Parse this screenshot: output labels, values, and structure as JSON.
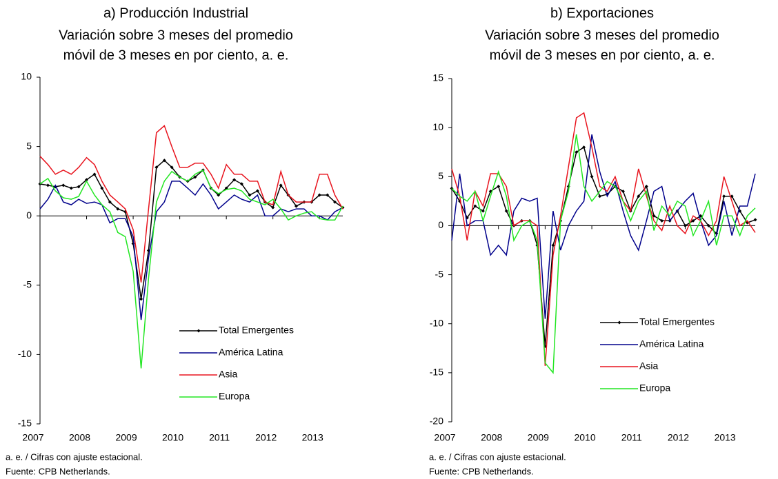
{
  "chart_data": [
    {
      "type": "line",
      "title": "a) Producción Industrial",
      "subtitle": [
        "Variación sobre 3 meses del promedio",
        "móvil de 3 meses en por ciento, a. e."
      ],
      "x": [
        2007,
        2007.17,
        2007.33,
        2007.5,
        2007.67,
        2007.83,
        2008,
        2008.17,
        2008.33,
        2008.5,
        2008.67,
        2008.83,
        2009,
        2009.17,
        2009.33,
        2009.5,
        2009.67,
        2009.83,
        2010,
        2010.17,
        2010.33,
        2010.5,
        2010.67,
        2010.83,
        2011,
        2011.17,
        2011.33,
        2011.5,
        2011.67,
        2011.83,
        2012,
        2012.17,
        2012.33,
        2012.5,
        2012.67,
        2012.83,
        2013,
        2013.17,
        2013.33,
        2013.5
      ],
      "series": [
        {
          "name": "Total Emergentes",
          "color": "#000000",
          "marker": true,
          "values": [
            2.3,
            2.2,
            2.1,
            2.2,
            2.0,
            2.1,
            2.6,
            3.0,
            2.0,
            1.0,
            0.5,
            0.3,
            -2.0,
            -6.0,
            -2.5,
            3.5,
            4.0,
            3.5,
            2.8,
            2.5,
            2.8,
            3.3,
            2.0,
            1.5,
            2.0,
            2.6,
            2.3,
            1.5,
            1.8,
            1.0,
            0.6,
            2.2,
            1.5,
            0.7,
            1.0,
            1.0,
            1.5,
            1.5,
            1.0,
            0.6
          ]
        },
        {
          "name": "América Latina",
          "color": "#00008b",
          "marker": false,
          "values": [
            0.5,
            1.2,
            2.2,
            1.0,
            0.8,
            1.2,
            0.9,
            1.0,
            0.8,
            -0.5,
            -0.2,
            -0.2,
            -1.5,
            -7.5,
            -3.0,
            0.3,
            1.0,
            2.5,
            2.5,
            2.0,
            1.5,
            2.3,
            1.5,
            0.5,
            1.0,
            1.5,
            1.2,
            1.0,
            1.5,
            0.0,
            0.0,
            0.5,
            0.3,
            0.5,
            0.5,
            0.0,
            0.0,
            -0.3,
            0.3,
            0.6
          ]
        },
        {
          "name": "Asia",
          "color": "#e8141e",
          "marker": false,
          "values": [
            4.3,
            3.7,
            3.0,
            3.3,
            3.0,
            3.5,
            4.2,
            3.7,
            2.5,
            1.5,
            1.0,
            0.5,
            -1.0,
            -4.8,
            0.5,
            6.0,
            6.5,
            5.0,
            3.5,
            3.5,
            3.8,
            3.8,
            3.0,
            2.0,
            3.7,
            3.0,
            3.0,
            2.5,
            2.5,
            1.0,
            0.8,
            3.2,
            1.5,
            1.0,
            1.0,
            1.0,
            3.0,
            3.0,
            1.5,
            0.5
          ]
        },
        {
          "name": "Europa",
          "color": "#22e622",
          "marker": false,
          "values": [
            2.3,
            2.7,
            1.8,
            1.3,
            1.2,
            1.4,
            2.5,
            1.5,
            0.8,
            0.3,
            -1.2,
            -1.5,
            -4.0,
            -11.0,
            -4.5,
            1.0,
            2.5,
            3.2,
            2.8,
            2.5,
            3.0,
            3.3,
            2.0,
            1.6,
            1.9,
            2.0,
            1.8,
            1.2,
            1.0,
            0.8,
            1.2,
            0.5,
            -0.3,
            0.0,
            0.2,
            0.3,
            -0.2,
            -0.3,
            -0.3,
            0.7
          ]
        }
      ],
      "xlim": [
        2007,
        2013.5
      ],
      "xticks": [
        2007,
        2008,
        2009,
        2010,
        2011,
        2012,
        2013
      ],
      "ylim": [
        -15,
        10
      ],
      "yticks": [
        -15,
        -10,
        -5,
        0,
        5,
        10
      ],
      "legend": "lower right",
      "footnotes": [
        "a. e. / Cifras con ajuste estacional.",
        "Fuente: CPB Netherlands."
      ]
    },
    {
      "type": "line",
      "title": "b) Exportaciones",
      "subtitle": [
        "Variación sobre 3 meses del promedio",
        "móvil de 3 meses en por ciento, a. e."
      ],
      "x": [
        2007,
        2007.17,
        2007.33,
        2007.5,
        2007.67,
        2007.83,
        2008,
        2008.17,
        2008.33,
        2008.5,
        2008.67,
        2008.83,
        2009,
        2009.17,
        2009.33,
        2009.5,
        2009.67,
        2009.83,
        2010,
        2010.17,
        2010.33,
        2010.5,
        2010.67,
        2010.83,
        2011,
        2011.17,
        2011.33,
        2011.5,
        2011.67,
        2011.83,
        2012,
        2012.17,
        2012.33,
        2012.5,
        2012.67,
        2012.83,
        2013,
        2013.17,
        2013.33,
        2013.5
      ],
      "series": [
        {
          "name": "Total Emergentes",
          "color": "#000000",
          "marker": true,
          "values": [
            3.8,
            2.5,
            0.8,
            2.0,
            1.5,
            3.5,
            4.0,
            1.5,
            0.0,
            0.5,
            0.5,
            -2.0,
            -12.3,
            -2.0,
            0.5,
            4.0,
            7.5,
            8.0,
            5.0,
            3.0,
            3.2,
            4.0,
            3.5,
            1.5,
            3.0,
            4.0,
            1.0,
            0.5,
            0.5,
            1.5,
            0.0,
            0.5,
            1.0,
            0.0,
            -0.8,
            3.0,
            3.0,
            1.5,
            0.3,
            0.6
          ]
        },
        {
          "name": "América Latina",
          "color": "#00008b",
          "marker": false,
          "values": [
            -1.5,
            5.3,
            0.0,
            0.5,
            0.5,
            -3.0,
            -2.0,
            -3.0,
            1.5,
            2.8,
            2.5,
            2.8,
            -9.5,
            1.5,
            -2.5,
            0.0,
            1.5,
            2.5,
            9.3,
            5.5,
            3.0,
            4.5,
            1.5,
            -1.0,
            -2.5,
            0.5,
            3.5,
            4.0,
            0.5,
            1.5,
            2.5,
            3.3,
            0.5,
            -2.0,
            -1.0,
            2.5,
            -1.0,
            2.0,
            2.0,
            5.3
          ]
        },
        {
          "name": "Asia",
          "color": "#e8141e",
          "marker": false,
          "values": [
            5.8,
            3.0,
            -1.5,
            3.5,
            2.0,
            5.3,
            5.3,
            4.0,
            0.0,
            0.5,
            0.5,
            0.0,
            -14.3,
            -3.0,
            1.0,
            6.0,
            11.0,
            11.5,
            8.0,
            4.0,
            3.5,
            5.0,
            2.5,
            1.5,
            5.8,
            3.0,
            0.5,
            -0.5,
            2.0,
            0.0,
            -0.8,
            1.0,
            0.5,
            -1.0,
            0.5,
            5.0,
            2.5,
            0.0,
            0.5,
            -0.7
          ]
        },
        {
          "name": "Europa",
          "color": "#22e622",
          "marker": false,
          "values": [
            3.8,
            3.0,
            2.5,
            3.5,
            0.5,
            3.0,
            5.5,
            3.0,
            -1.5,
            0.0,
            0.5,
            -1.5,
            -14.0,
            -15.0,
            0.5,
            3.5,
            9.3,
            4.0,
            2.5,
            3.5,
            4.5,
            4.0,
            2.5,
            0.5,
            2.5,
            3.5,
            -0.5,
            2.0,
            1.0,
            2.5,
            2.0,
            -1.0,
            0.5,
            2.5,
            -2.0,
            1.0,
            1.0,
            -1.0,
            1.0,
            1.8
          ]
        }
      ],
      "xlim": [
        2007,
        2013.5
      ],
      "xticks": [
        2007,
        2008,
        2009,
        2010,
        2011,
        2012,
        2013
      ],
      "ylim": [
        -20,
        15
      ],
      "yticks": [
        -20,
        -15,
        -10,
        -5,
        0,
        5,
        10,
        15
      ],
      "legend": "lower right",
      "footnotes": [
        "a. e. / Cifras con ajuste estacional.",
        "Fuente: CPB Netherlands."
      ]
    }
  ]
}
